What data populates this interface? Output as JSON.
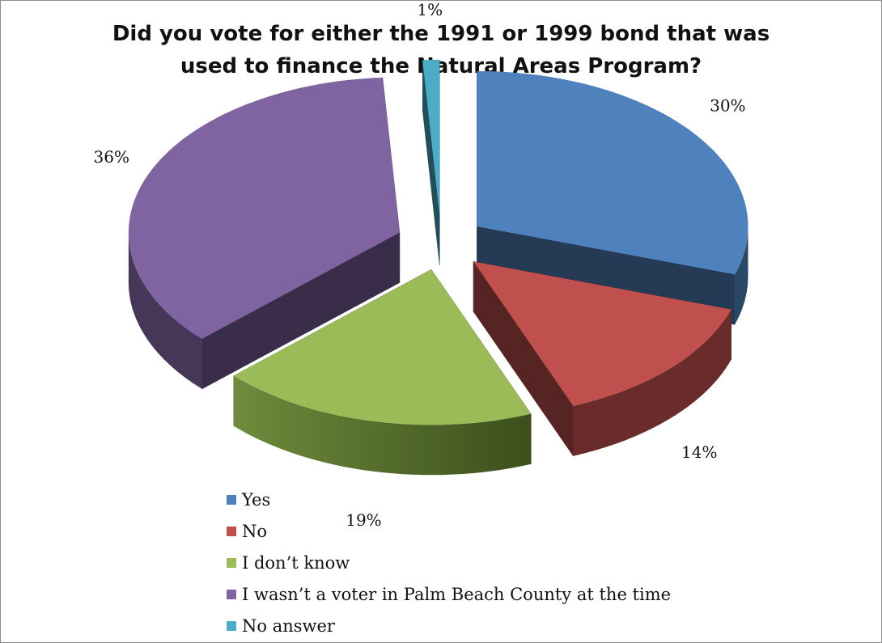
{
  "chart_data": {
    "type": "pie",
    "style": "3d-exploded",
    "title_lines": [
      "Did you vote for either the 1991 or 1999 bond that was",
      "used to finance the Natural Areas Program?"
    ],
    "slices": [
      {
        "label": "Yes",
        "value": 30,
        "value_label": "30%",
        "color": "#4f81bd"
      },
      {
        "label": "No",
        "value": 14,
        "value_label": "14%",
        "color": "#c0504d"
      },
      {
        "label": "I don’t know",
        "value": 19,
        "value_label": "19%",
        "color": "#9bbb59"
      },
      {
        "label": "I wasn’t a voter in Palm Beach County at the time",
        "value": 36,
        "value_label": "36%",
        "color": "#8064a2"
      },
      {
        "label": "No answer",
        "value": 1,
        "value_label": "1%",
        "color": "#4bacc6"
      }
    ],
    "legend_position": "bottom"
  }
}
